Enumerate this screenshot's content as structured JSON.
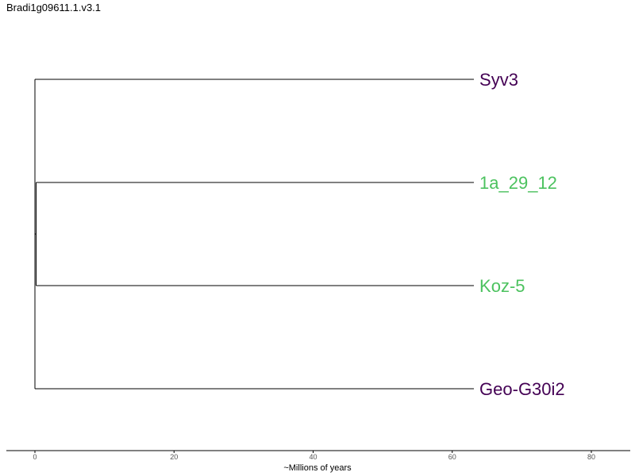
{
  "title": "Bradi1g09611.1.v3.1",
  "tree": {
    "leaves": [
      {
        "name": "Syv3",
        "color": "#440154",
        "branch_length": 63
      },
      {
        "name": "1a_29_12",
        "color": "#4cc25f",
        "branch_length": 63
      },
      {
        "name": "Koz-5",
        "color": "#4cc25f",
        "branch_length": 63
      },
      {
        "name": "Geo-G30i2",
        "color": "#440154",
        "branch_length": 63
      }
    ],
    "structure": "((1a_29_12,Koz-5),Syv3,Geo-G30i2)"
  },
  "axis": {
    "label": "~Millions of years",
    "ticks": [
      0,
      20,
      40,
      60,
      80
    ]
  }
}
